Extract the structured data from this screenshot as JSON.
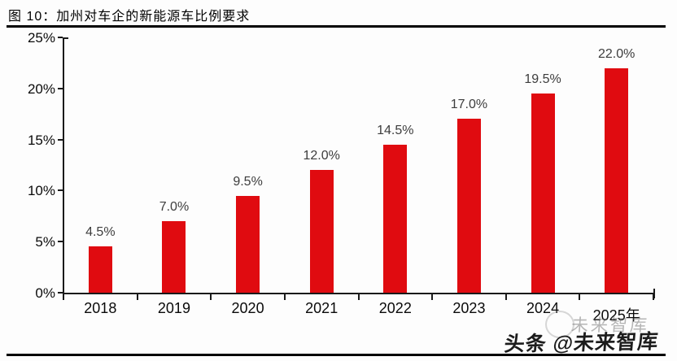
{
  "figure": {
    "title": "图 10：加州对车企的新能源车比例要求"
  },
  "chart_data": {
    "type": "bar",
    "title": "加州对车企的新能源车比例要求",
    "categories": [
      "2018",
      "2019",
      "2020",
      "2021",
      "2022",
      "2023",
      "2024",
      "2025年"
    ],
    "values": [
      4.5,
      7.0,
      9.5,
      12.0,
      14.5,
      17.0,
      19.5,
      22.0
    ],
    "value_labels": [
      "4.5%",
      "7.0%",
      "9.5%",
      "12.0%",
      "14.5%",
      "17.0%",
      "19.5%",
      "22.0%"
    ],
    "xlabel": "",
    "ylabel": "",
    "ylim": [
      0,
      25
    ],
    "ytick_step": 5,
    "ytick_labels": [
      "0%",
      "5%",
      "10%",
      "15%",
      "20%",
      "25%"
    ],
    "bar_color": "#e00b10",
    "value_label_color": "#3d3d3d",
    "grid": false,
    "legend": "none"
  },
  "watermark": {
    "back_text": "未来智库",
    "front_text": "头条 @未来智库"
  }
}
